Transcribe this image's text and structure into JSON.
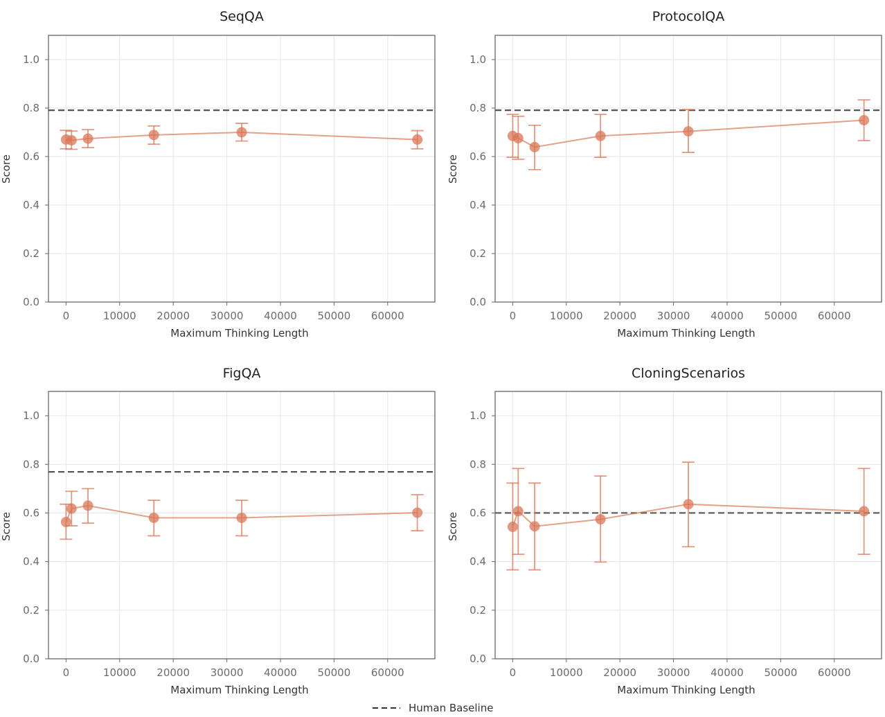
{
  "colors": {
    "series": "#d97757",
    "baseline": "#555555",
    "grid": "#e6e6e6",
    "axes": "#666666"
  },
  "legend": {
    "entries": [
      {
        "label": "Human Baseline",
        "style": "dashed",
        "color": "#555555"
      }
    ],
    "placement": "bottom-center"
  },
  "chart_data": [
    {
      "type": "line",
      "title": "SeqQA",
      "xlabel": "Maximum Thinking Length",
      "ylabel": "Score",
      "xlim": [
        -3277,
        68813
      ],
      "ylim": [
        0,
        1.1
      ],
      "xticks": [
        0,
        10000,
        20000,
        30000,
        40000,
        50000,
        60000
      ],
      "yticks": [
        0.0,
        0.2,
        0.4,
        0.6,
        0.8,
        1.0
      ],
      "ytick_labels": [
        "0.0",
        "0.2",
        "0.4",
        "0.6",
        "0.8",
        "1.0"
      ],
      "grid": true,
      "x": [
        0,
        1024,
        4096,
        16384,
        32768,
        65536
      ],
      "y": [
        0.67,
        0.667,
        0.674,
        0.689,
        0.7,
        0.67
      ],
      "err_low": [
        0.632,
        0.63,
        0.637,
        0.651,
        0.664,
        0.632
      ],
      "err_high": [
        0.708,
        0.705,
        0.711,
        0.726,
        0.737,
        0.707
      ],
      "baseline": 0.791
    },
    {
      "type": "line",
      "title": "ProtocolQA",
      "xlabel": "Maximum Thinking Length",
      "ylabel": "Score",
      "xlim": [
        -3277,
        68813
      ],
      "ylim": [
        0,
        1.1
      ],
      "xticks": [
        0,
        10000,
        20000,
        30000,
        40000,
        50000,
        60000
      ],
      "yticks": [
        0.0,
        0.2,
        0.4,
        0.6,
        0.8,
        1.0
      ],
      "ytick_labels": [
        "0.0",
        "0.2",
        "0.4",
        "0.6",
        "0.8",
        "1.0"
      ],
      "grid": true,
      "x": [
        0,
        1024,
        4096,
        16384,
        32768,
        65536
      ],
      "y": [
        0.685,
        0.676,
        0.639,
        0.685,
        0.704,
        0.75
      ],
      "err_low": [
        0.597,
        0.589,
        0.546,
        0.597,
        0.617,
        0.666
      ],
      "err_high": [
        0.774,
        0.766,
        0.729,
        0.774,
        0.794,
        0.834
      ],
      "baseline": 0.791
    },
    {
      "type": "line",
      "title": "FigQA",
      "xlabel": "Maximum Thinking Length",
      "ylabel": "Score",
      "xlim": [
        -3277,
        68813
      ],
      "ylim": [
        0,
        1.1
      ],
      "xticks": [
        0,
        10000,
        20000,
        30000,
        40000,
        50000,
        60000
      ],
      "yticks": [
        0.0,
        0.2,
        0.4,
        0.6,
        0.8,
        1.0
      ],
      "ytick_labels": [
        "0.0",
        "0.2",
        "0.4",
        "0.6",
        "0.8",
        "1.0"
      ],
      "grid": true,
      "x": [
        0,
        1024,
        4096,
        16384,
        32768,
        65536
      ],
      "y": [
        0.563,
        0.618,
        0.63,
        0.58,
        0.58,
        0.601
      ],
      "err_low": [
        0.492,
        0.547,
        0.558,
        0.506,
        0.506,
        0.527
      ],
      "err_high": [
        0.636,
        0.689,
        0.7,
        0.652,
        0.652,
        0.675
      ],
      "baseline": 0.769
    },
    {
      "type": "line",
      "title": "CloningScenarios",
      "xlabel": "Maximum Thinking Length",
      "ylabel": "Score",
      "xlim": [
        -3277,
        68813
      ],
      "ylim": [
        0,
        1.1
      ],
      "xticks": [
        0,
        10000,
        20000,
        30000,
        40000,
        50000,
        60000
      ],
      "yticks": [
        0.0,
        0.2,
        0.4,
        0.6,
        0.8,
        1.0
      ],
      "ytick_labels": [
        "0.0",
        "0.2",
        "0.4",
        "0.6",
        "0.8",
        "1.0"
      ],
      "grid": true,
      "x": [
        0,
        1024,
        4096,
        16384,
        32768,
        65536
      ],
      "y": [
        0.543,
        0.607,
        0.545,
        0.574,
        0.636,
        0.607
      ],
      "err_low": [
        0.366,
        0.43,
        0.366,
        0.398,
        0.461,
        0.43
      ],
      "err_high": [
        0.723,
        0.783,
        0.723,
        0.752,
        0.809,
        0.783
      ],
      "baseline": 0.6
    }
  ]
}
